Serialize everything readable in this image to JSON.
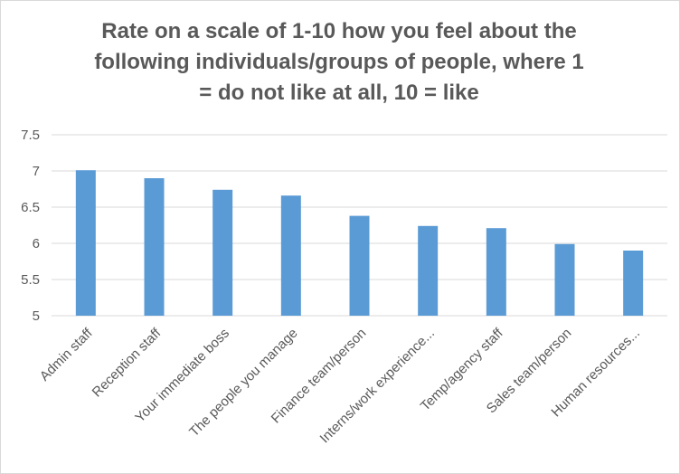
{
  "chart_data": {
    "type": "bar",
    "title_lines": [
      "Rate on a scale of 1-10 how you feel about the",
      "following individuals/groups of people, where 1",
      "= do not like at all, 10 = like"
    ],
    "categories": [
      "Admin staff",
      "Reception staff",
      "Your immediate boss",
      "The people you manage",
      "Finance team/person",
      "Interns/work experience...",
      "Temp/agency staff",
      "Sales team/person",
      "Human resources..."
    ],
    "values": [
      7.01,
      6.9,
      6.74,
      6.66,
      6.38,
      6.24,
      6.21,
      5.99,
      5.9
    ],
    "ylim": [
      5,
      7.5
    ],
    "yticks": [
      "7.5",
      "7",
      "6.5",
      "6",
      "5.5",
      "5"
    ],
    "grid": true,
    "bar_color": "#5b9bd5",
    "grid_color": "#d9d9d9"
  }
}
